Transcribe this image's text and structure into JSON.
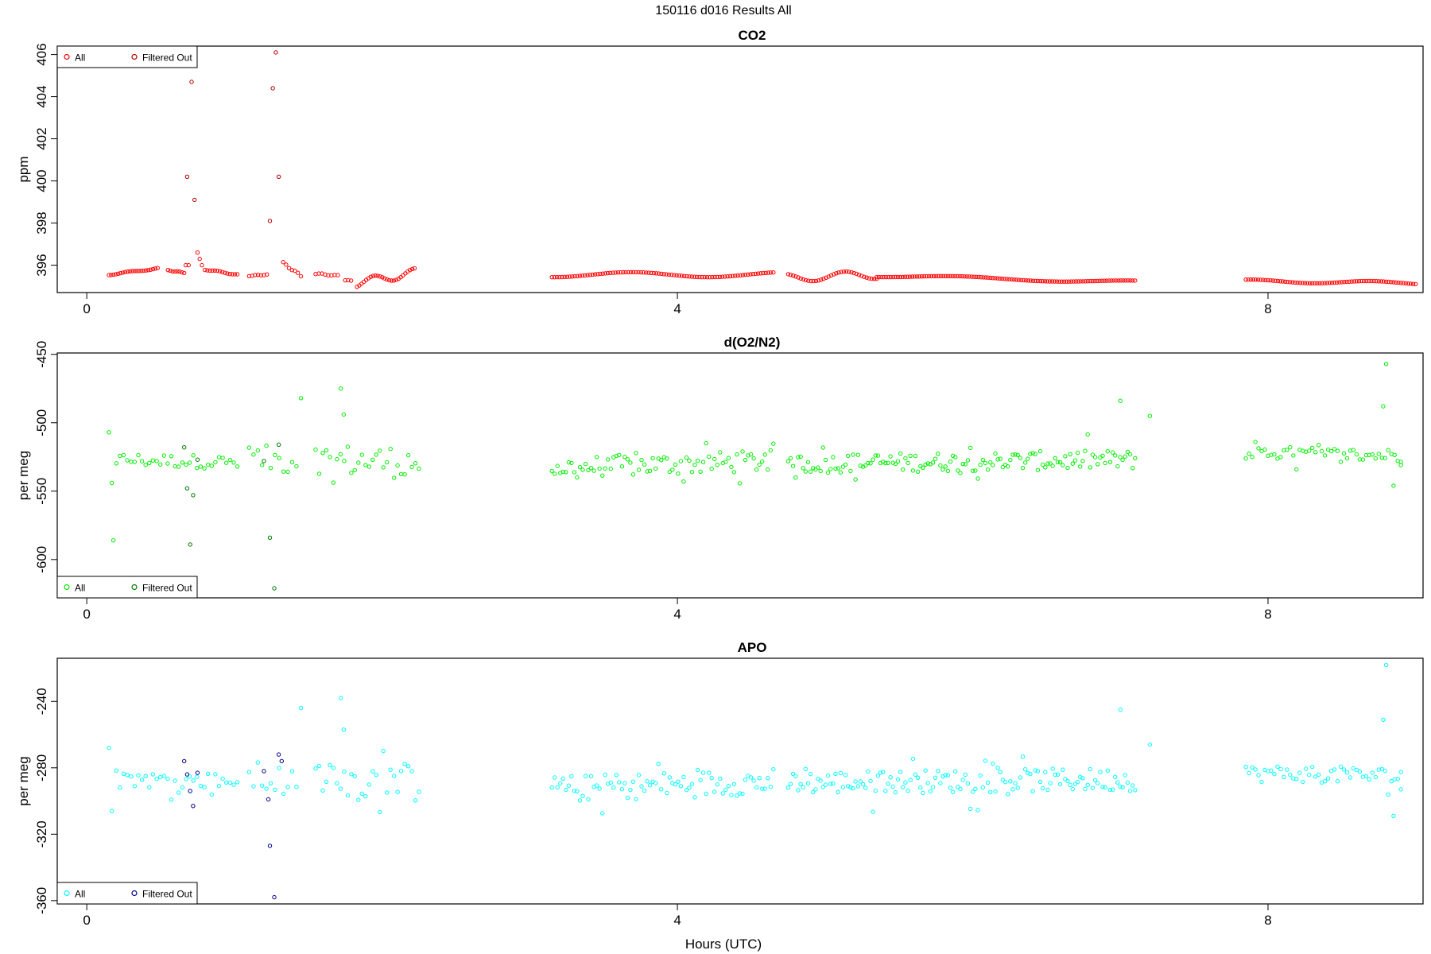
{
  "page_title": "150116   d016   Results All",
  "x_axis_label": "Hours (UTC)",
  "chart_data": [
    {
      "type": "scatter",
      "title": "CO2",
      "ylabel": "ppm",
      "xlim": [
        -0.2,
        9.05
      ],
      "ylim": [
        394.7,
        406.4
      ],
      "xticks": [
        "0",
        "4",
        "8"
      ],
      "xtick_values": [
        0,
        4,
        8
      ],
      "yticks": [
        "396",
        "398",
        "400",
        "402",
        "404",
        "406"
      ],
      "ytick_values": [
        396,
        398,
        400,
        402,
        404,
        406
      ],
      "legend_position": "top-left",
      "legend": [
        {
          "label": "All",
          "color": "#ff0000"
        },
        {
          "label": "Filtered Out",
          "color": "#b00000"
        }
      ],
      "color_all": "#ff0000",
      "color_filtered": "#b00000",
      "filtered_points": [
        [
          0.68,
          400.2
        ],
        [
          0.71,
          404.7
        ],
        [
          0.73,
          399.1
        ],
        [
          1.24,
          398.1
        ],
        [
          1.26,
          404.4
        ],
        [
          1.28,
          406.1
        ],
        [
          1.3,
          400.2
        ]
      ],
      "segments": [
        {
          "x0": 0.15,
          "x1": 0.48,
          "n": 22,
          "y0": 395.55,
          "y1": 395.85,
          "amp": 0.03
        },
        {
          "x0": 0.55,
          "x1": 0.66,
          "n": 8,
          "y0": 395.75,
          "y1": 395.65,
          "amp": 0.02
        },
        {
          "x0": 0.67,
          "x1": 0.69,
          "n": 2,
          "y0": 396.0,
          "y1": 396.0,
          "amp": 0.0
        },
        {
          "x0": 0.75,
          "x1": 0.78,
          "n": 3,
          "y0": 396.6,
          "y1": 396.0,
          "amp": 0.0
        },
        {
          "x0": 0.8,
          "x1": 1.02,
          "n": 14,
          "y0": 395.8,
          "y1": 395.55,
          "amp": 0.03
        },
        {
          "x0": 1.1,
          "x1": 1.22,
          "n": 7,
          "y0": 395.5,
          "y1": 395.55,
          "amp": 0.02
        },
        {
          "x0": 1.33,
          "x1": 1.45,
          "n": 7,
          "y0": 396.1,
          "y1": 395.5,
          "amp": 0.05
        },
        {
          "x0": 1.55,
          "x1": 1.7,
          "n": 8,
          "y0": 395.6,
          "y1": 395.5,
          "amp": 0.03
        },
        {
          "x0": 1.75,
          "x1": 1.79,
          "n": 3,
          "y0": 395.3,
          "y1": 395.25,
          "amp": 0.02
        },
        {
          "x0": 1.83,
          "x1": 2.22,
          "n": 26,
          "y0": 395.15,
          "y1": 395.65,
          "amp": 0.2
        },
        {
          "x0": 3.15,
          "x1": 4.65,
          "n": 88,
          "y0": 395.55,
          "y1": 395.55,
          "amp": 0.12
        },
        {
          "x0": 4.75,
          "x1": 5.35,
          "n": 36,
          "y0": 395.4,
          "y1": 395.55,
          "amp": 0.2
        },
        {
          "x0": 5.35,
          "x1": 7.1,
          "n": 110,
          "y0": 395.5,
          "y1": 395.2,
          "amp": 0.07
        },
        {
          "x0": 7.85,
          "x1": 9.0,
          "n": 70,
          "y0": 395.25,
          "y1": 395.15,
          "amp": 0.07
        }
      ]
    },
    {
      "type": "scatter",
      "title": "d(O2/N2)",
      "ylabel": "per meg",
      "xlim": [
        -0.2,
        9.05
      ],
      "ylim": [
        -628,
        -449
      ],
      "xticks": [
        "0",
        "4",
        "8"
      ],
      "xtick_values": [
        0,
        4,
        8
      ],
      "yticks": [
        "-600",
        "-550",
        "-500",
        "-450"
      ],
      "ytick_values": [
        -600,
        -550,
        -500,
        -450
      ],
      "legend_position": "bottom-left",
      "legend": [
        {
          "label": "All",
          "color": "#00ee00"
        },
        {
          "label": "Filtered Out",
          "color": "#007a00"
        }
      ],
      "color_all": "#00ee00",
      "color_filtered": "#007a00",
      "filtered_points": [
        [
          0.66,
          -518
        ],
        [
          0.68,
          -548
        ],
        [
          0.7,
          -589
        ],
        [
          0.72,
          -553
        ],
        [
          0.75,
          -527
        ],
        [
          1.2,
          -528
        ],
        [
          1.24,
          -584
        ],
        [
          1.27,
          -621
        ],
        [
          1.3,
          -516
        ]
      ],
      "outliers": [
        [
          0.15,
          -507
        ],
        [
          0.17,
          -544
        ],
        [
          0.18,
          -586
        ],
        [
          1.45,
          -482
        ],
        [
          1.72,
          -475
        ],
        [
          1.74,
          -494
        ],
        [
          7.0,
          -484
        ],
        [
          7.2,
          -495
        ],
        [
          8.8,
          -457
        ],
        [
          8.78,
          -488
        ],
        [
          8.85,
          -546
        ],
        [
          8.9,
          -531
        ]
      ],
      "segments": [
        {
          "x0": 0.2,
          "x1": 1.02,
          "n": 34,
          "y0": -527,
          "y1": -529,
          "amp": 5
        },
        {
          "x0": 1.1,
          "x1": 1.42,
          "n": 12,
          "y0": -526,
          "y1": -528,
          "amp": 10
        },
        {
          "x0": 1.55,
          "x1": 2.25,
          "n": 30,
          "y0": -527,
          "y1": -529,
          "amp": 12
        },
        {
          "x0": 3.15,
          "x1": 4.65,
          "n": 80,
          "y0": -533,
          "y1": -528,
          "amp": 8
        },
        {
          "x0": 4.75,
          "x1": 7.1,
          "n": 140,
          "y0": -530,
          "y1": -527,
          "amp": 7
        },
        {
          "x0": 7.85,
          "x1": 8.9,
          "n": 50,
          "y0": -522,
          "y1": -524,
          "amp": 5
        }
      ]
    },
    {
      "type": "scatter",
      "title": "APO",
      "ylabel": "per meg",
      "xlim": [
        -0.2,
        9.05
      ],
      "ylim": [
        -362,
        -214
      ],
      "xticks": [
        "0",
        "4",
        "8"
      ],
      "xtick_values": [
        0,
        4,
        8
      ],
      "yticks": [
        "-360",
        "-320",
        "-280",
        "-240"
      ],
      "ytick_values": [
        -360,
        -320,
        -280,
        -240
      ],
      "legend_position": "bottom-left",
      "legend": [
        {
          "label": "All",
          "color": "#00ffff"
        },
        {
          "label": "Filtered Out",
          "color": "#00008b"
        }
      ],
      "color_all": "#00ffff",
      "color_filtered": "#00008b",
      "filtered_points": [
        [
          0.66,
          -276
        ],
        [
          0.68,
          -284
        ],
        [
          0.7,
          -294
        ],
        [
          0.72,
          -303
        ],
        [
          0.75,
          -283
        ],
        [
          1.2,
          -282
        ],
        [
          1.23,
          -299
        ],
        [
          1.24,
          -327
        ],
        [
          1.27,
          -358
        ],
        [
          1.3,
          -272
        ],
        [
          1.32,
          -276
        ]
      ],
      "outliers": [
        [
          0.15,
          -268
        ],
        [
          0.17,
          -306
        ],
        [
          0.19,
          -350
        ],
        [
          1.45,
          -244
        ],
        [
          1.72,
          -238
        ],
        [
          1.74,
          -257
        ],
        [
          7.0,
          -245
        ],
        [
          7.2,
          -266
        ],
        [
          8.8,
          -218
        ],
        [
          8.78,
          -251
        ],
        [
          8.85,
          -309
        ],
        [
          8.9,
          -293
        ]
      ],
      "segments": [
        {
          "x0": 0.2,
          "x1": 1.02,
          "n": 34,
          "y0": -287,
          "y1": -288,
          "amp": 5
        },
        {
          "x0": 1.1,
          "x1": 1.42,
          "n": 12,
          "y0": -286,
          "y1": -288,
          "amp": 10
        },
        {
          "x0": 1.55,
          "x1": 2.25,
          "n": 30,
          "y0": -287,
          "y1": -289,
          "amp": 12
        },
        {
          "x0": 3.15,
          "x1": 4.65,
          "n": 80,
          "y0": -293,
          "y1": -288,
          "amp": 8
        },
        {
          "x0": 4.75,
          "x1": 7.1,
          "n": 140,
          "y0": -289,
          "y1": -287,
          "amp": 7
        },
        {
          "x0": 7.85,
          "x1": 8.9,
          "n": 50,
          "y0": -283,
          "y1": -285,
          "amp": 5
        }
      ]
    }
  ]
}
